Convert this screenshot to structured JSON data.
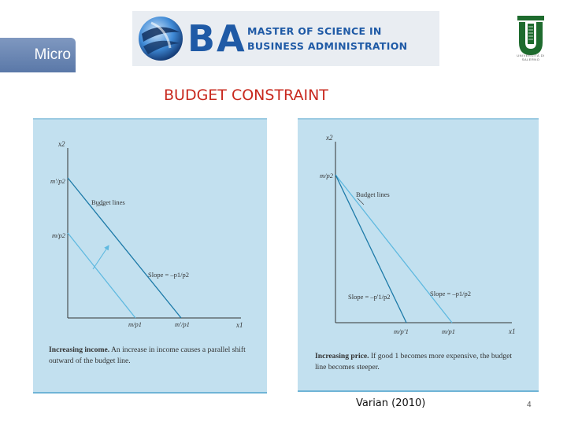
{
  "header": {
    "tab_label": "Micro",
    "logo_letters": "BA",
    "logo_line1": "MASTER OF SCIENCE IN",
    "logo_line2": "BUSINESS ADMINISTRATION",
    "university_text": "UNIVERSITÀ DI SALERNO"
  },
  "slide": {
    "title": "BUDGET CONSTRAINT",
    "citation": "Varian (2010)",
    "page_number": "4"
  },
  "figure_left": {
    "y_axis": "x2",
    "x_axis": "x1",
    "y_tick_high": "m'/p2",
    "y_tick_low": "m/p2",
    "x_tick_low": "m/p1",
    "x_tick_high": "m'/p1",
    "lines_label": "Budget lines",
    "slope_label": "Slope = –p1/p2",
    "caption_bold": "Increasing income.",
    "caption_text": " An increase in income causes a parallel shift outward of the budget line."
  },
  "figure_right": {
    "y_axis": "x2",
    "x_axis": "x1",
    "y_tick": "m/p2",
    "x_tick_low": "m/p'1",
    "x_tick_high": "m/p1",
    "lines_label": "Budget lines",
    "slope_steep_label": "Slope = –p'1/p2",
    "slope_flat_label": "Slope = –p1/p2",
    "caption_bold": "Increasing price.",
    "caption_text": " If good 1 becomes more expensive, the budget line becomes steeper."
  },
  "colors": {
    "panel_bg": "#c2e0ef",
    "line_dark": "#1d7aa8",
    "line_light": "#5fb9e0",
    "title_red": "#c8281e",
    "brand_blue": "#1f5aa6"
  }
}
